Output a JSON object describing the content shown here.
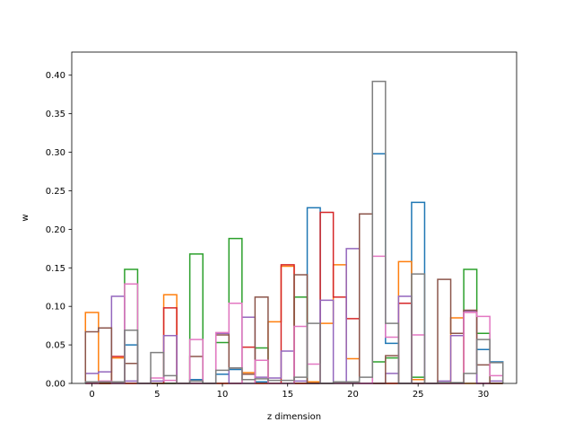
{
  "chart_data": {
    "type": "bar",
    "style": "step-histogram",
    "title": "",
    "xlabel": "z dimension",
    "ylabel": "w",
    "xlim": [
      -1.55,
      32.55
    ],
    "ylim": [
      0,
      0.43
    ],
    "xticks": [
      0,
      5,
      10,
      15,
      20,
      25,
      30
    ],
    "yticks": [
      0.0,
      0.05,
      0.1,
      0.15,
      0.2,
      0.25,
      0.3,
      0.35,
      0.4
    ],
    "ytick_labels": [
      "0.00",
      "0.05",
      "0.10",
      "0.15",
      "0.20",
      "0.25",
      "0.30",
      "0.35",
      "0.40"
    ],
    "grid": false,
    "bin_width": 1,
    "x": [
      0,
      1,
      2,
      3,
      4,
      5,
      6,
      7,
      8,
      9,
      10,
      11,
      12,
      13,
      14,
      15,
      16,
      17,
      18,
      19,
      20,
      21,
      22,
      23,
      24,
      25,
      26,
      27,
      28,
      29,
      30,
      31
    ],
    "series": [
      {
        "color": "#1f77b4",
        "values": [
          0,
          0,
          0,
          0.05,
          0,
          0,
          0,
          0,
          0.005,
          0,
          0.012,
          0.018,
          0,
          0.002,
          0,
          0,
          0,
          0.228,
          0,
          0,
          0,
          0,
          0.298,
          0.052,
          0,
          0.235,
          0,
          0,
          0,
          0,
          0.044,
          0.028
        ]
      },
      {
        "color": "#ff7f0e",
        "values": [
          0.092,
          0,
          0.033,
          0,
          0,
          0,
          0.115,
          0,
          0,
          0,
          0,
          0,
          0.014,
          0,
          0.08,
          0.152,
          0,
          0.002,
          0.078,
          0.154,
          0.032,
          0,
          0,
          0,
          0.158,
          0.005,
          0,
          0,
          0.085,
          0,
          0,
          0
        ]
      },
      {
        "color": "#2ca02c",
        "values": [
          0,
          0,
          0,
          0.148,
          0,
          0,
          0,
          0,
          0.168,
          0,
          0.053,
          0.188,
          0,
          0.046,
          0,
          0,
          0.112,
          0,
          0,
          0,
          0,
          0,
          0.028,
          0.033,
          0,
          0.008,
          0,
          0,
          0,
          0.148,
          0.065,
          0
        ]
      },
      {
        "color": "#d62728",
        "values": [
          0,
          0,
          0.035,
          0,
          0,
          0,
          0.098,
          0,
          0,
          0,
          0,
          0,
          0.047,
          0,
          0,
          0.154,
          0,
          0,
          0.222,
          0.112,
          0.084,
          0,
          0,
          0,
          0.104,
          0,
          0,
          0,
          0,
          0.094,
          0,
          0
        ]
      },
      {
        "color": "#9467bd",
        "values": [
          0.013,
          0.015,
          0.113,
          0.003,
          0,
          0.003,
          0.062,
          0,
          0,
          0,
          0.065,
          0,
          0.086,
          0.008,
          0.007,
          0.042,
          0.003,
          0,
          0.108,
          0.002,
          0.175,
          0,
          0,
          0.013,
          0.113,
          0,
          0,
          0.003,
          0.062,
          0.094,
          0,
          0.003
        ]
      },
      {
        "color": "#8c564b",
        "values": [
          0.067,
          0.072,
          0,
          0.026,
          0,
          0,
          0,
          0,
          0.035,
          0,
          0.063,
          0.02,
          0.012,
          0.112,
          0,
          0,
          0.141,
          0,
          0,
          0,
          0,
          0.22,
          0,
          0.036,
          0,
          0,
          0,
          0.135,
          0.065,
          0.095,
          0.024,
          0
        ]
      },
      {
        "color": "#e377c2",
        "values": [
          0,
          0.003,
          0,
          0.129,
          0,
          0.007,
          0.004,
          0,
          0.057,
          0,
          0.066,
          0.104,
          0,
          0.03,
          0,
          0,
          0.074,
          0.025,
          0,
          0,
          0,
          0,
          0.165,
          0.06,
          0,
          0.063,
          0,
          0,
          0,
          0.092,
          0.087,
          0.01
        ]
      },
      {
        "color": "#7f7f7f",
        "values": [
          0.002,
          0.002,
          0.002,
          0.069,
          0,
          0.04,
          0.01,
          0,
          0.003,
          0,
          0.017,
          0.02,
          0.005,
          0.006,
          0.004,
          0.004,
          0.008,
          0.078,
          0,
          0.002,
          0.002,
          0.008,
          0.392,
          0.078,
          0,
          0.142,
          0,
          0.001,
          0.001,
          0.013,
          0.057,
          0.027
        ]
      }
    ]
  }
}
